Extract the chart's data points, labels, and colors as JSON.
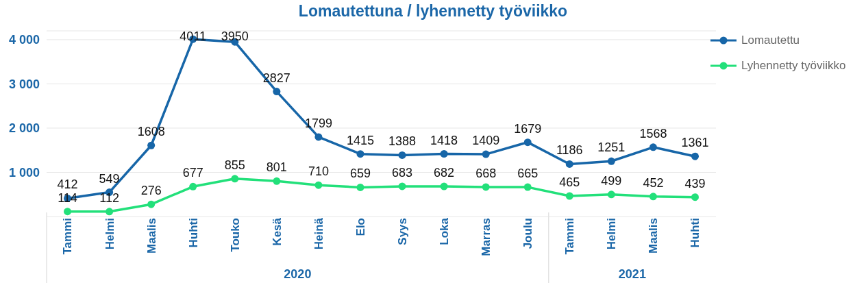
{
  "chart_data": {
    "type": "line",
    "title": "Lomautettuna / lyhennetty työviikko",
    "categories": [
      "Tammi",
      "Helmi",
      "Maalis",
      "Huhti",
      "Touko",
      "Kesä",
      "Heinä",
      "Elo",
      "Syys",
      "Loka",
      "Marras",
      "Joulu",
      "Tammi",
      "Helmi",
      "Maalis",
      "Huhti"
    ],
    "series": [
      {
        "name": "Lomautettu",
        "color": "#1766a8",
        "values": [
          412,
          549,
          1608,
          4011,
          3950,
          2827,
          1799,
          1415,
          1388,
          1418,
          1409,
          1679,
          1186,
          1251,
          1568,
          1361
        ]
      },
      {
        "name": "Lyhennetty työviikko",
        "color": "#22e07a",
        "values": [
          114,
          112,
          276,
          677,
          855,
          801,
          710,
          659,
          683,
          682,
          668,
          665,
          465,
          499,
          452,
          439
        ]
      }
    ],
    "ylim": [
      0,
      4200
    ],
    "yticks": [
      {
        "value": 1000,
        "label": "1 000"
      },
      {
        "value": 2000,
        "label": "2 000"
      },
      {
        "value": 3000,
        "label": "3 000"
      },
      {
        "value": 4000,
        "label": "4 000"
      }
    ],
    "annotations": [
      "2020",
      "2021"
    ],
    "grid": "y",
    "legend": "top right",
    "marker": "circle",
    "line_style": "solid",
    "data_labels": true
  }
}
